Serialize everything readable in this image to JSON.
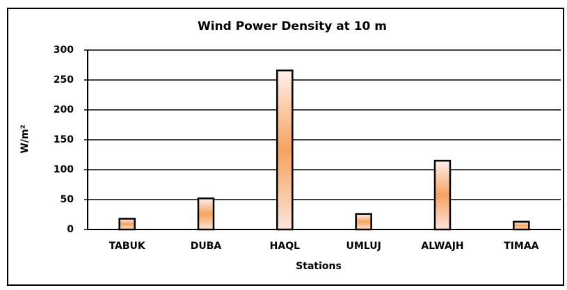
{
  "chart_data": {
    "type": "bar",
    "title": "Wind Power Density at 10 m",
    "x_label": "Stations",
    "y_label": "W/m²",
    "categories": [
      "TABUK",
      "DUBA",
      "HAQL",
      "UMLUJ",
      "ALWAJH",
      "TIMAA"
    ],
    "values": [
      18,
      52,
      266,
      26,
      115,
      13
    ],
    "color": "#f5a35f",
    "ylim": [
      0,
      300
    ],
    "yticks": [
      0,
      50,
      100,
      150,
      200,
      250,
      300
    ],
    "grid": true
  }
}
